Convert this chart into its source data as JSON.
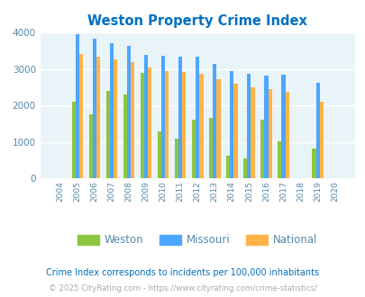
{
  "title": "Weston Property Crime Index",
  "years": [
    2004,
    2005,
    2006,
    2007,
    2008,
    2009,
    2010,
    2011,
    2012,
    2013,
    2014,
    2015,
    2016,
    2017,
    2018,
    2019,
    2020
  ],
  "weston": [
    0,
    2100,
    1750,
    2400,
    2300,
    2900,
    1290,
    1090,
    1620,
    1650,
    610,
    540,
    1610,
    1020,
    0,
    820,
    0
  ],
  "missouri": [
    0,
    3950,
    3830,
    3720,
    3640,
    3400,
    3360,
    3330,
    3340,
    3140,
    2940,
    2870,
    2820,
    2840,
    0,
    2630,
    0
  ],
  "national": [
    0,
    3420,
    3350,
    3270,
    3200,
    3040,
    2950,
    2920,
    2870,
    2710,
    2600,
    2490,
    2450,
    2380,
    0,
    2100,
    0
  ],
  "bar_width": 0.22,
  "ylim": [
    0,
    4000
  ],
  "yticks": [
    0,
    1000,
    2000,
    3000,
    4000
  ],
  "colors": {
    "weston": "#8dc63f",
    "missouri": "#4da6ff",
    "national": "#ffb347"
  },
  "bg_color": "#e8f4f8",
  "grid_color": "#ffffff",
  "title_color": "#0070c0",
  "legend_labels": [
    "Weston",
    "Missouri",
    "National"
  ],
  "footnote1": "Crime Index corresponds to incidents per 100,000 inhabitants",
  "footnote2": "© 2025 CityRating.com - https://www.cityrating.com/crime-statistics/",
  "footnote1_color": "#0070c0",
  "footnote2_color": "#aaaaaa",
  "tick_color": "#5588aa"
}
